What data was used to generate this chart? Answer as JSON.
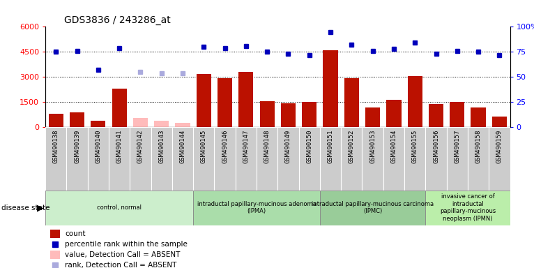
{
  "title": "GDS3836 / 243286_at",
  "samples": [
    "GSM490138",
    "GSM490139",
    "GSM490140",
    "GSM490141",
    "GSM490142",
    "GSM490143",
    "GSM490144",
    "GSM490145",
    "GSM490146",
    "GSM490147",
    "GSM490148",
    "GSM490149",
    "GSM490150",
    "GSM490151",
    "GSM490152",
    "GSM490153",
    "GSM490154",
    "GSM490155",
    "GSM490156",
    "GSM490157",
    "GSM490158",
    "GSM490159"
  ],
  "counts": [
    800,
    900,
    400,
    2300,
    0,
    0,
    0,
    3200,
    2950,
    3300,
    1550,
    1450,
    1500,
    4600,
    2950,
    1200,
    1650,
    3050,
    1400,
    1500,
    1200,
    650
  ],
  "counts_abs": [
    0,
    0,
    0,
    0,
    550,
    380,
    280,
    0,
    0,
    0,
    0,
    0,
    0,
    0,
    0,
    0,
    0,
    0,
    0,
    0,
    0,
    0
  ],
  "pct": [
    75,
    76,
    57,
    79,
    0,
    0,
    0,
    80,
    79,
    81,
    75,
    73,
    72,
    95,
    82,
    76,
    78,
    84,
    73,
    76,
    75,
    72
  ],
  "pct_abs": [
    0,
    0,
    0,
    0,
    55,
    54,
    54,
    0,
    0,
    0,
    0,
    0,
    0,
    0,
    0,
    0,
    0,
    0,
    0,
    0,
    0,
    0
  ],
  "absent": [
    false,
    false,
    false,
    false,
    true,
    true,
    true,
    false,
    false,
    false,
    false,
    false,
    false,
    false,
    false,
    false,
    false,
    false,
    false,
    false,
    false,
    false
  ],
  "groups": [
    {
      "label": "control, normal",
      "start": 0,
      "end": 7,
      "color": "#cceecc"
    },
    {
      "label": "intraductal papillary-mucinous adenoma\n(IPMA)",
      "start": 7,
      "end": 13,
      "color": "#aaddaa"
    },
    {
      "label": "intraductal papillary-mucinous carcinoma\n(IPMC)",
      "start": 13,
      "end": 18,
      "color": "#99cc99"
    },
    {
      "label": "invasive cancer of\nintraductal\npapillary-mucinous\nneoplasm (IPMN)",
      "start": 18,
      "end": 22,
      "color": "#bbeeaa"
    }
  ],
  "bar_color": "#bb1100",
  "bar_absent_color": "#ffbbbb",
  "dot_color": "#0000bb",
  "dot_absent_color": "#aaaadd",
  "tick_bg_color": "#cccccc",
  "left_ylim": [
    0,
    6000
  ],
  "right_ylim": [
    0,
    100
  ],
  "left_yticks": [
    0,
    1500,
    3000,
    4500,
    6000
  ],
  "right_yticks": [
    0,
    25,
    50,
    75,
    100
  ]
}
